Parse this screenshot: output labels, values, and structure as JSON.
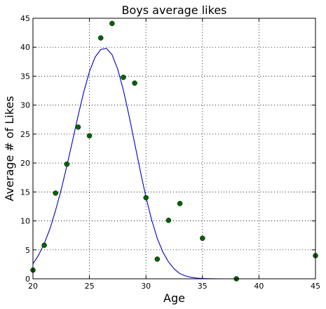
{
  "chart_data": {
    "type": "scatter",
    "title": "Boys average likes",
    "xlabel": "Age",
    "ylabel": "Average # of Likes",
    "xlim": [
      20,
      45
    ],
    "ylim": [
      0,
      45
    ],
    "xticks": [
      20,
      25,
      30,
      35,
      40,
      45
    ],
    "yticks": [
      0,
      5,
      10,
      15,
      20,
      25,
      30,
      35,
      40,
      45
    ],
    "grid": true,
    "colors": {
      "points": "#006400",
      "fit_line": "#0000cc"
    },
    "series": [
      {
        "kind": "points",
        "x": [
          20,
          21,
          22,
          23,
          24,
          25,
          26,
          27,
          28,
          29,
          30,
          31,
          32,
          33,
          35,
          38,
          45
        ],
        "y": [
          1.5,
          5.8,
          14.8,
          19.8,
          26.2,
          24.7,
          41.6,
          44.1,
          34.8,
          33.8,
          14.0,
          3.4,
          10.1,
          13.0,
          7.0,
          0.0,
          4.0
        ]
      },
      {
        "kind": "fit_line",
        "x": [
          20,
          20.5,
          21,
          21.5,
          22,
          22.5,
          23,
          23.5,
          24,
          24.5,
          25,
          25.5,
          26,
          26.5,
          27,
          27.5,
          28,
          28.5,
          29,
          29.5,
          30,
          30.5,
          31,
          31.5,
          32,
          32.5,
          33,
          33.5,
          34,
          34.5,
          35,
          35.5,
          36,
          37,
          38,
          39,
          40,
          42,
          45
        ],
        "y": [
          2.6,
          4.1,
          6.1,
          8.6,
          11.8,
          15.4,
          19.5,
          23.8,
          28.2,
          32.3,
          35.8,
          38.3,
          39.6,
          39.8,
          38.7,
          36.2,
          32.6,
          28.2,
          23.4,
          18.6,
          14.1,
          10.2,
          7.0,
          4.6,
          2.9,
          1.7,
          0.9,
          0.5,
          0.25,
          0.12,
          0.05,
          0.02,
          0.01,
          0,
          0,
          0,
          0,
          0,
          0
        ]
      }
    ]
  }
}
